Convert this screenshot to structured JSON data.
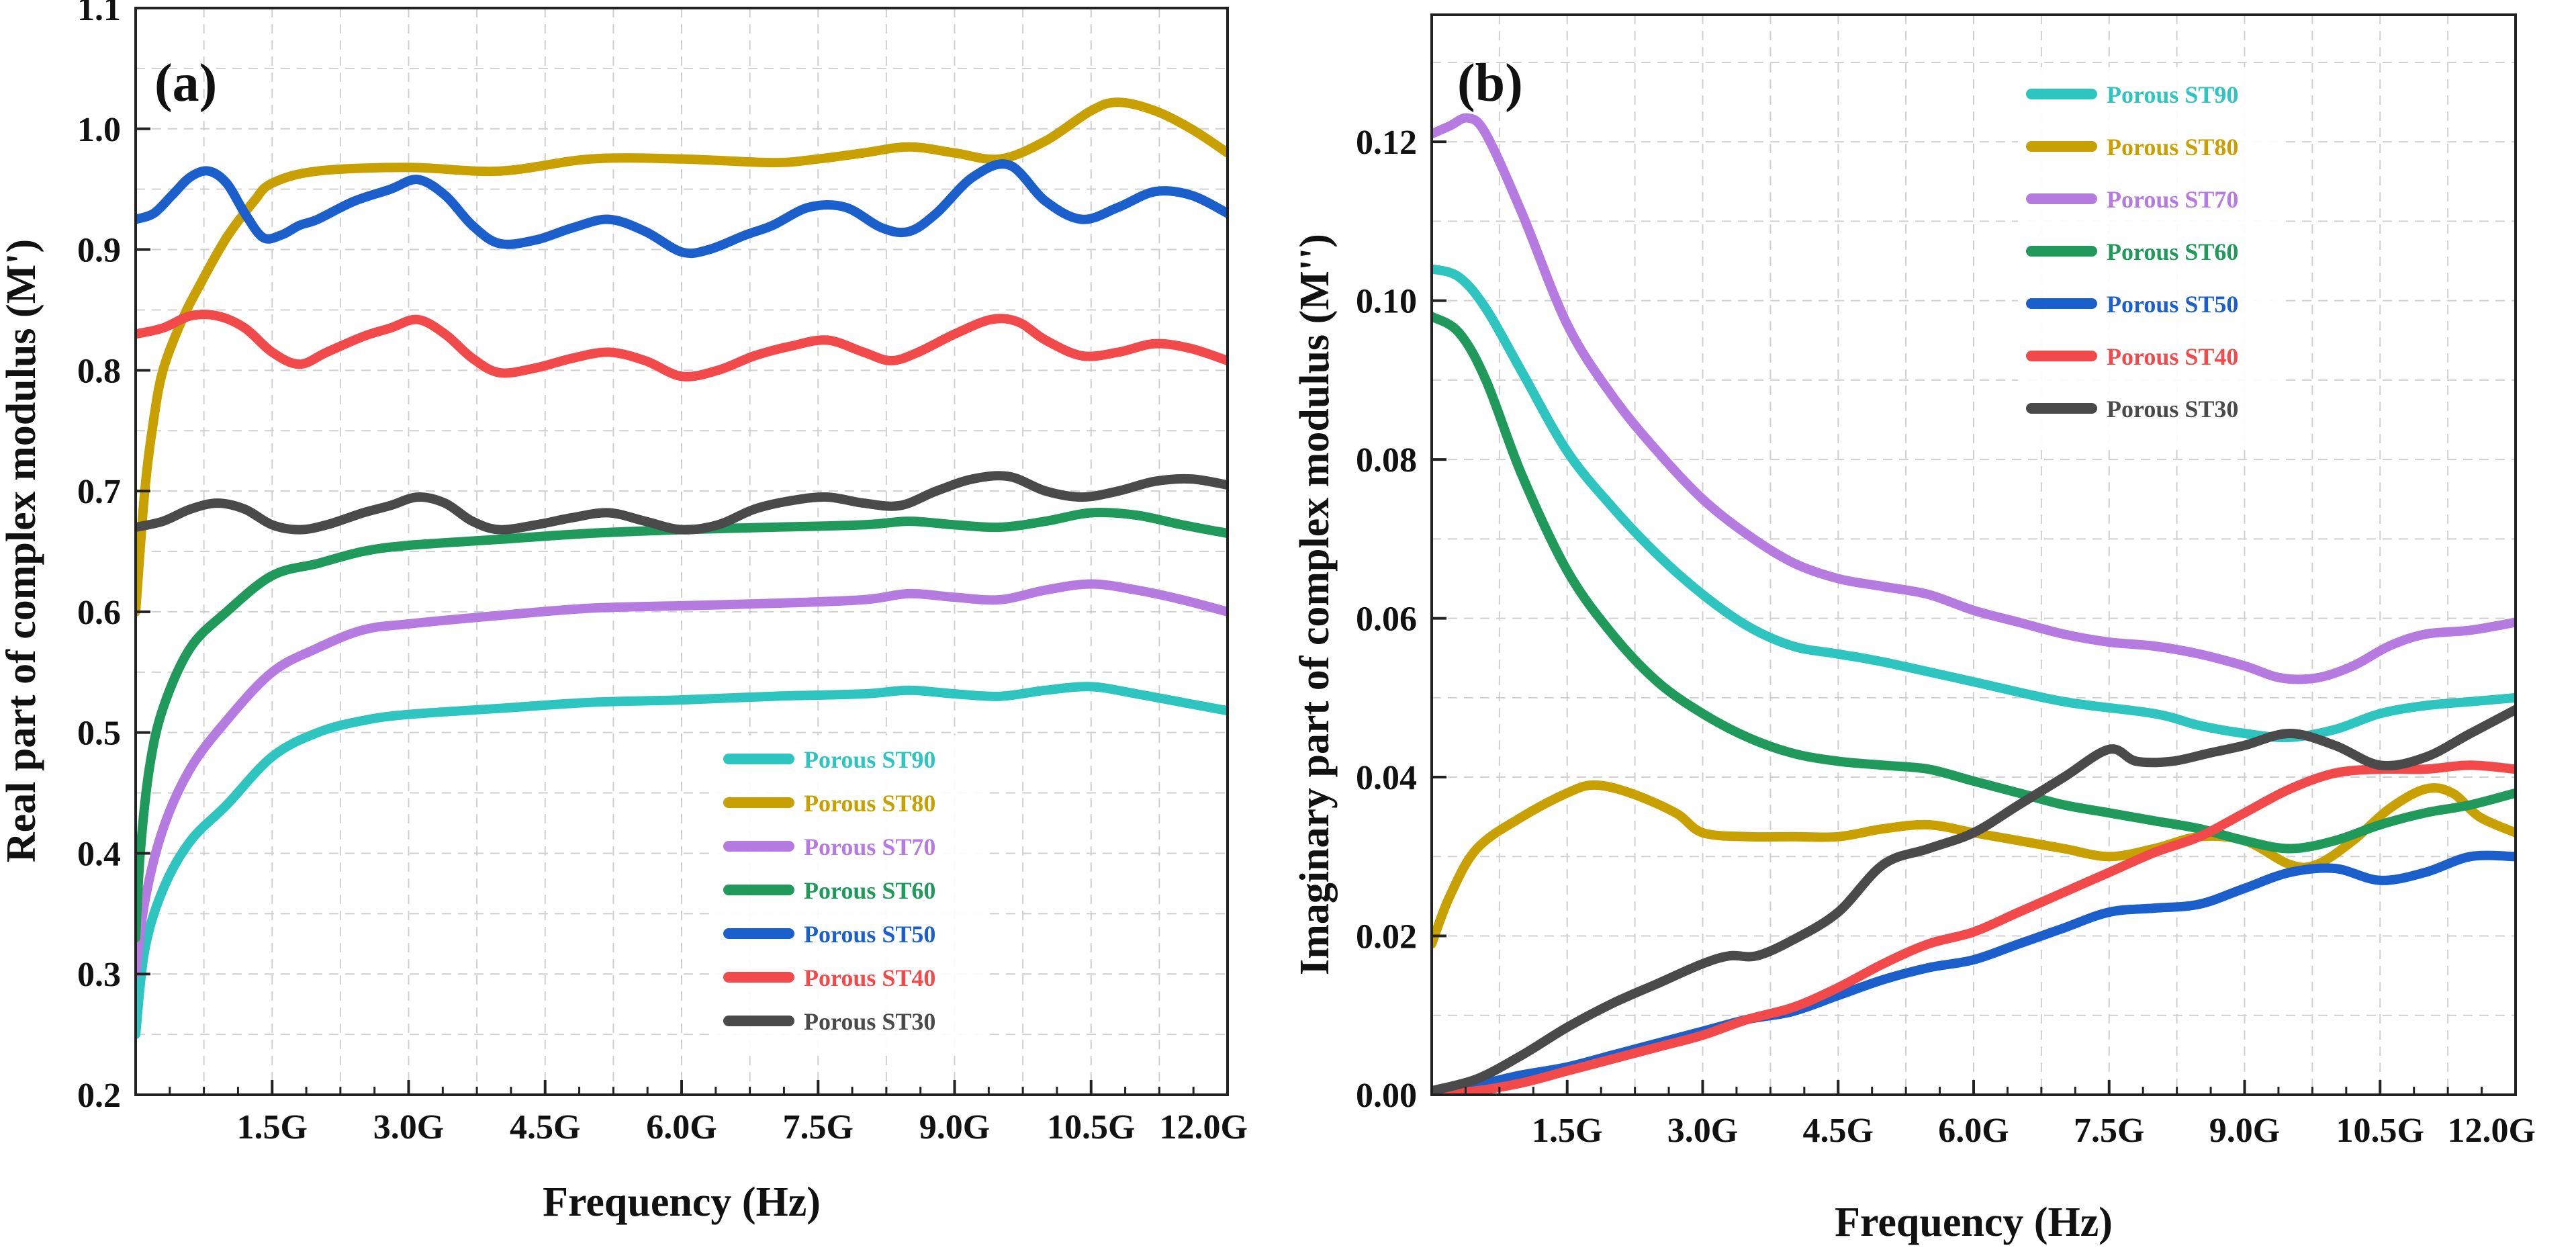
{
  "chart_data": [
    {
      "type": "line",
      "panel_label": "(a)",
      "xlabel": "Frequency (Hz)",
      "ylabel": "Real part of complex modulus (M')",
      "xlim": [
        0,
        12
      ],
      "ylim": [
        0.2,
        1.1
      ],
      "xticks": [
        1.5,
        3.0,
        4.5,
        6.0,
        7.5,
        9.0,
        10.5,
        12.0
      ],
      "xtick_labels": [
        "1.5G",
        "3.0G",
        "4.5G",
        "6.0G",
        "7.5G",
        "9.0G",
        "10.5G",
        "12.0G"
      ],
      "yticks": [
        0.2,
        0.3,
        0.4,
        0.5,
        0.6,
        0.7,
        0.8,
        0.9,
        1.0,
        1.1
      ],
      "ytick_labels": [
        "0.2",
        "0.3",
        "0.4",
        "0.5",
        "0.6",
        "0.7",
        "0.8",
        "0.9",
        "1.0",
        "1.1"
      ],
      "legend_position": "bottom-right",
      "series": [
        {
          "name": "Porous ST90",
          "color": "#2ec4c0",
          "x": [
            0.0,
            0.1,
            0.3,
            0.6,
            1.0,
            1.5,
            2.0,
            2.5,
            3.0,
            4.0,
            5.0,
            6.0,
            7.0,
            8.0,
            8.5,
            9.0,
            9.5,
            10.0,
            10.5,
            11.0,
            11.5,
            12.0
          ],
          "y": [
            0.25,
            0.32,
            0.37,
            0.41,
            0.44,
            0.48,
            0.5,
            0.51,
            0.515,
            0.52,
            0.525,
            0.527,
            0.53,
            0.532,
            0.535,
            0.532,
            0.53,
            0.535,
            0.538,
            0.532,
            0.525,
            0.518
          ]
        },
        {
          "name": "Porous ST80",
          "color": "#c8a000",
          "x": [
            0.0,
            0.1,
            0.2,
            0.3,
            0.5,
            0.7,
            1.0,
            1.3,
            1.5,
            2.0,
            3.0,
            4.0,
            5.0,
            6.0,
            7.0,
            7.5,
            8.0,
            8.5,
            9.0,
            9.5,
            10.0,
            10.5,
            10.8,
            11.2,
            11.6,
            12.0
          ],
          "y": [
            0.6,
            0.7,
            0.76,
            0.8,
            0.84,
            0.87,
            0.91,
            0.94,
            0.955,
            0.965,
            0.968,
            0.965,
            0.975,
            0.975,
            0.972,
            0.975,
            0.98,
            0.985,
            0.98,
            0.975,
            0.99,
            1.015,
            1.022,
            1.015,
            1.0,
            0.98
          ]
        },
        {
          "name": "Porous ST70",
          "color": "#b57be0",
          "x": [
            0.0,
            0.1,
            0.3,
            0.6,
            1.0,
            1.5,
            2.0,
            2.5,
            3.0,
            4.0,
            5.0,
            6.0,
            7.0,
            8.0,
            8.5,
            9.0,
            9.5,
            10.0,
            10.5,
            11.0,
            11.5,
            12.0
          ],
          "y": [
            0.3,
            0.36,
            0.42,
            0.47,
            0.51,
            0.55,
            0.57,
            0.585,
            0.59,
            0.597,
            0.603,
            0.605,
            0.607,
            0.61,
            0.615,
            0.612,
            0.61,
            0.618,
            0.623,
            0.618,
            0.61,
            0.6
          ]
        },
        {
          "name": "Porous ST60",
          "color": "#1f9a5a",
          "x": [
            0.0,
            0.05,
            0.15,
            0.3,
            0.6,
            1.0,
            1.5,
            2.0,
            2.5,
            3.0,
            4.0,
            5.0,
            6.0,
            7.0,
            8.0,
            8.5,
            9.0,
            9.5,
            10.0,
            10.5,
            11.0,
            11.5,
            12.0
          ],
          "y": [
            0.33,
            0.4,
            0.47,
            0.52,
            0.57,
            0.6,
            0.63,
            0.64,
            0.65,
            0.655,
            0.66,
            0.665,
            0.668,
            0.67,
            0.672,
            0.675,
            0.672,
            0.67,
            0.675,
            0.682,
            0.68,
            0.672,
            0.665
          ]
        },
        {
          "name": "Porous ST50",
          "color": "#1a5fcc",
          "x": [
            0.0,
            0.2,
            0.4,
            0.6,
            0.8,
            1.0,
            1.2,
            1.4,
            1.6,
            1.8,
            2.0,
            2.4,
            2.8,
            3.1,
            3.4,
            3.7,
            4.0,
            4.4,
            4.8,
            5.2,
            5.6,
            6.0,
            6.3,
            6.7,
            7.0,
            7.4,
            7.8,
            8.2,
            8.5,
            8.8,
            9.2,
            9.6,
            10.0,
            10.4,
            10.8,
            11.2,
            11.6,
            12.0
          ],
          "y": [
            0.925,
            0.93,
            0.945,
            0.96,
            0.965,
            0.955,
            0.93,
            0.91,
            0.912,
            0.92,
            0.925,
            0.94,
            0.95,
            0.958,
            0.945,
            0.92,
            0.905,
            0.908,
            0.918,
            0.925,
            0.915,
            0.898,
            0.9,
            0.912,
            0.92,
            0.935,
            0.935,
            0.918,
            0.915,
            0.93,
            0.96,
            0.97,
            0.94,
            0.925,
            0.935,
            0.948,
            0.945,
            0.93
          ]
        },
        {
          "name": "Porous ST40",
          "color": "#f24a4a",
          "x": [
            0.0,
            0.3,
            0.6,
            0.9,
            1.2,
            1.5,
            1.8,
            2.1,
            2.5,
            2.8,
            3.1,
            3.4,
            3.7,
            4.0,
            4.4,
            4.8,
            5.2,
            5.6,
            6.0,
            6.4,
            6.8,
            7.2,
            7.6,
            8.0,
            8.3,
            8.6,
            9.0,
            9.4,
            9.7,
            10.0,
            10.4,
            10.8,
            11.2,
            11.6,
            12.0
          ],
          "y": [
            0.83,
            0.835,
            0.845,
            0.845,
            0.835,
            0.815,
            0.805,
            0.815,
            0.828,
            0.835,
            0.842,
            0.83,
            0.81,
            0.798,
            0.802,
            0.81,
            0.815,
            0.808,
            0.795,
            0.8,
            0.812,
            0.82,
            0.825,
            0.815,
            0.808,
            0.815,
            0.83,
            0.842,
            0.84,
            0.825,
            0.812,
            0.815,
            0.822,
            0.818,
            0.808
          ]
        },
        {
          "name": "Porous ST30",
          "color": "#4a4a4a",
          "x": [
            0.0,
            0.3,
            0.6,
            0.9,
            1.2,
            1.5,
            1.8,
            2.1,
            2.5,
            2.8,
            3.1,
            3.4,
            3.7,
            4.0,
            4.4,
            4.8,
            5.2,
            5.6,
            6.0,
            6.4,
            6.8,
            7.2,
            7.6,
            8.0,
            8.4,
            8.8,
            9.2,
            9.6,
            10.0,
            10.4,
            10.8,
            11.2,
            11.6,
            12.0
          ],
          "y": [
            0.67,
            0.675,
            0.685,
            0.69,
            0.685,
            0.672,
            0.668,
            0.672,
            0.682,
            0.688,
            0.695,
            0.69,
            0.675,
            0.668,
            0.672,
            0.678,
            0.682,
            0.675,
            0.668,
            0.672,
            0.685,
            0.692,
            0.695,
            0.69,
            0.688,
            0.7,
            0.71,
            0.712,
            0.7,
            0.695,
            0.7,
            0.708,
            0.71,
            0.705
          ]
        }
      ]
    },
    {
      "type": "line",
      "panel_label": "(b)",
      "xlabel": "Frequency (Hz)",
      "ylabel": "Imaginary part of complex modulus (M'')",
      "xlim": [
        0,
        12
      ],
      "ylim": [
        0.0,
        0.136
      ],
      "xticks": [
        1.5,
        3.0,
        4.5,
        6.0,
        7.5,
        9.0,
        10.5,
        12.0
      ],
      "xtick_labels": [
        "1.5G",
        "3.0G",
        "4.5G",
        "6.0G",
        "7.5G",
        "9.0G",
        "10.5G",
        "12.0G"
      ],
      "yticks": [
        0.0,
        0.02,
        0.04,
        0.06,
        0.08,
        0.1,
        0.12
      ],
      "ytick_labels": [
        "0.00",
        "0.02",
        "0.04",
        "0.06",
        "0.08",
        "0.10",
        "0.12"
      ],
      "legend_position": "top-center",
      "series": [
        {
          "name": "Porous ST90",
          "color": "#2ec4c0",
          "x": [
            0.0,
            0.3,
            0.6,
            1.0,
            1.5,
            2.0,
            2.5,
            3.0,
            3.5,
            4.0,
            4.5,
            5.0,
            6.0,
            7.0,
            8.0,
            8.5,
            9.0,
            9.5,
            10.0,
            10.5,
            11.0,
            11.5,
            12.0
          ],
          "y": [
            0.104,
            0.103,
            0.099,
            0.091,
            0.081,
            0.074,
            0.068,
            0.063,
            0.059,
            0.0565,
            0.0555,
            0.0545,
            0.052,
            0.0495,
            0.048,
            0.0465,
            0.0455,
            0.045,
            0.046,
            0.048,
            0.049,
            0.0495,
            0.05
          ]
        },
        {
          "name": "Porous ST80",
          "color": "#c8a000",
          "x": [
            0.0,
            0.2,
            0.5,
            1.0,
            1.5,
            1.8,
            2.2,
            2.7,
            3.0,
            3.5,
            4.0,
            4.5,
            5.0,
            5.5,
            6.0,
            6.5,
            7.0,
            7.5,
            8.0,
            8.5,
            9.0,
            9.5,
            9.8,
            10.2,
            10.6,
            11.0,
            11.3,
            11.6,
            12.0
          ],
          "y": [
            0.019,
            0.025,
            0.031,
            0.035,
            0.038,
            0.039,
            0.038,
            0.0355,
            0.033,
            0.0325,
            0.0325,
            0.0325,
            0.0335,
            0.034,
            0.033,
            0.032,
            0.031,
            0.03,
            0.031,
            0.0325,
            0.032,
            0.029,
            0.029,
            0.032,
            0.036,
            0.0385,
            0.038,
            0.035,
            0.033
          ]
        },
        {
          "name": "Porous ST70",
          "color": "#b57be0",
          "x": [
            0.0,
            0.2,
            0.4,
            0.6,
            1.0,
            1.5,
            2.0,
            2.5,
            3.0,
            3.5,
            4.0,
            4.5,
            5.0,
            5.5,
            6.0,
            6.5,
            7.0,
            7.5,
            8.0,
            8.5,
            9.0,
            9.4,
            9.8,
            10.2,
            10.6,
            11.0,
            11.5,
            12.0
          ],
          "y": [
            0.121,
            0.122,
            0.123,
            0.121,
            0.111,
            0.097,
            0.088,
            0.081,
            0.075,
            0.0705,
            0.067,
            0.065,
            0.064,
            0.063,
            0.061,
            0.0595,
            0.058,
            0.057,
            0.0565,
            0.0555,
            0.054,
            0.0525,
            0.0525,
            0.054,
            0.0565,
            0.058,
            0.0585,
            0.0595
          ]
        },
        {
          "name": "Porous ST60",
          "color": "#1f9a5a",
          "x": [
            0.0,
            0.3,
            0.6,
            1.0,
            1.5,
            2.0,
            2.5,
            3.0,
            3.5,
            4.0,
            4.5,
            5.0,
            5.5,
            6.0,
            6.5,
            7.0,
            7.5,
            8.0,
            8.5,
            9.0,
            9.5,
            10.0,
            10.5,
            11.0,
            11.5,
            12.0
          ],
          "y": [
            0.098,
            0.096,
            0.09,
            0.078,
            0.066,
            0.058,
            0.052,
            0.048,
            0.045,
            0.043,
            0.042,
            0.0415,
            0.041,
            0.0395,
            0.038,
            0.0365,
            0.0355,
            0.0345,
            0.0335,
            0.032,
            0.031,
            0.032,
            0.034,
            0.0355,
            0.0365,
            0.038
          ]
        },
        {
          "name": "Porous ST50",
          "color": "#1a5fcc",
          "x": [
            0.0,
            0.3,
            0.6,
            1.0,
            1.5,
            2.0,
            2.5,
            3.0,
            3.5,
            4.0,
            4.5,
            5.0,
            5.5,
            6.0,
            6.5,
            7.0,
            7.5,
            8.0,
            8.5,
            9.0,
            9.5,
            10.0,
            10.5,
            11.0,
            11.5,
            12.0
          ],
          "y": [
            0.0005,
            0.001,
            0.0015,
            0.0025,
            0.0035,
            0.005,
            0.0065,
            0.008,
            0.0095,
            0.0105,
            0.0125,
            0.0145,
            0.016,
            0.017,
            0.019,
            0.021,
            0.023,
            0.0235,
            0.024,
            0.026,
            0.028,
            0.0285,
            0.027,
            0.028,
            0.03,
            0.03
          ]
        },
        {
          "name": "Porous ST40",
          "color": "#f24a4a",
          "x": [
            0.0,
            0.5,
            1.0,
            1.5,
            2.0,
            2.5,
            3.0,
            3.5,
            4.0,
            4.5,
            5.0,
            5.5,
            6.0,
            6.5,
            7.0,
            7.5,
            8.0,
            8.5,
            9.0,
            9.5,
            10.0,
            10.5,
            11.0,
            11.5,
            12.0
          ],
          "y": [
            0.0,
            0.0005,
            0.0015,
            0.003,
            0.0045,
            0.006,
            0.0075,
            0.0095,
            0.011,
            0.0135,
            0.0165,
            0.019,
            0.0205,
            0.023,
            0.0255,
            0.028,
            0.0305,
            0.0325,
            0.0355,
            0.0385,
            0.0405,
            0.041,
            0.041,
            0.0415,
            0.041
          ]
        },
        {
          "name": "Porous ST30",
          "color": "#4a4a4a",
          "x": [
            0.0,
            0.5,
            1.0,
            1.5,
            2.0,
            2.5,
            3.0,
            3.3,
            3.6,
            4.0,
            4.5,
            5.0,
            5.5,
            6.0,
            6.5,
            7.0,
            7.5,
            7.8,
            8.2,
            8.6,
            9.0,
            9.5,
            10.0,
            10.5,
            11.0,
            11.5,
            12.0
          ],
          "y": [
            0.0005,
            0.002,
            0.005,
            0.0085,
            0.0115,
            0.014,
            0.0165,
            0.0175,
            0.0175,
            0.0195,
            0.023,
            0.029,
            0.031,
            0.033,
            0.0365,
            0.04,
            0.0435,
            0.042,
            0.042,
            0.043,
            0.044,
            0.0455,
            0.044,
            0.0415,
            0.0425,
            0.0455,
            0.0485
          ]
        }
      ]
    }
  ]
}
